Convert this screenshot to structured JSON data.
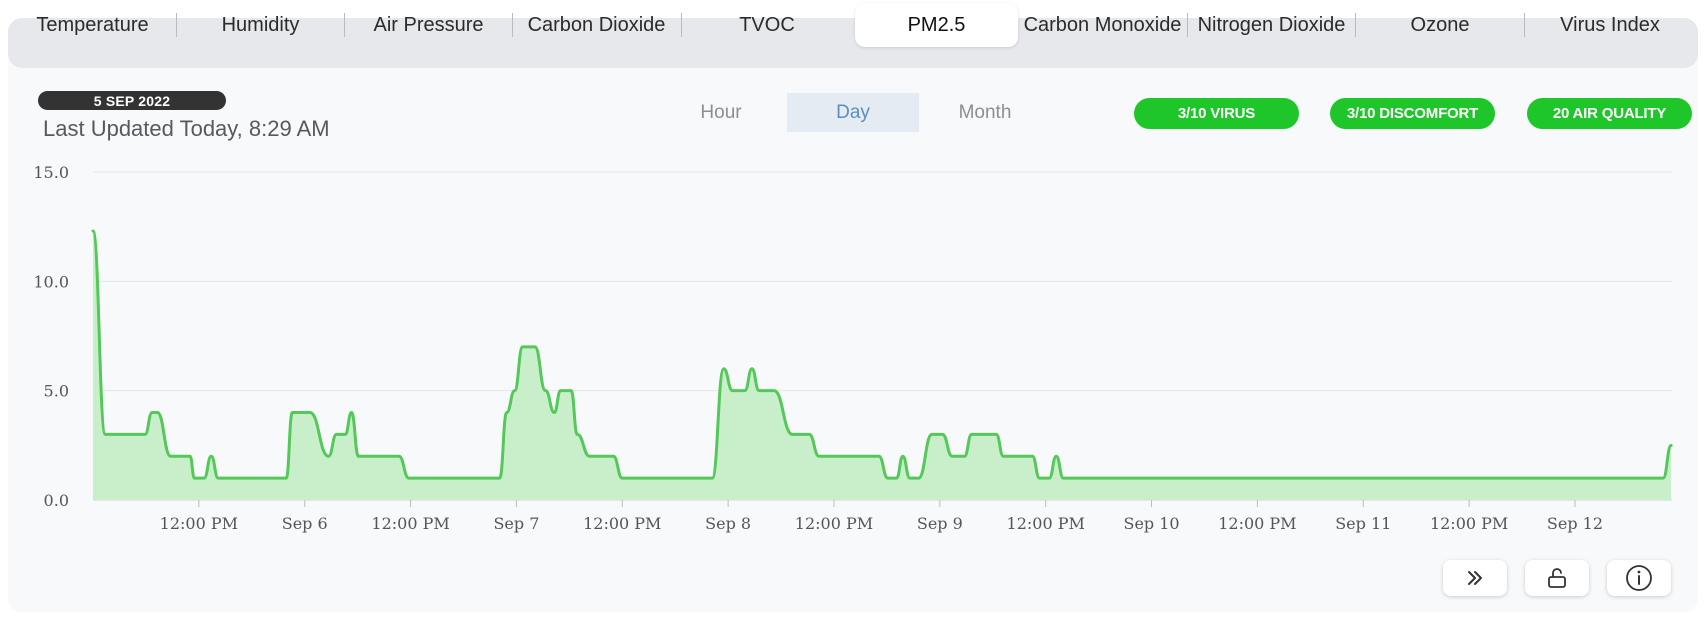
{
  "tabs": [
    {
      "label": "Temperature"
    },
    {
      "label": "Humidity"
    },
    {
      "label": "Air Pressure"
    },
    {
      "label": "Carbon Dioxide"
    },
    {
      "label": "TVOC"
    },
    {
      "label": "PM2.5",
      "active": true
    },
    {
      "label": "Carbon Monoxide"
    },
    {
      "label": "Nitrogen Dioxide"
    },
    {
      "label": "Ozone"
    },
    {
      "label": "Virus Index"
    }
  ],
  "header": {
    "date_badge": "5 SEP 2022",
    "last_updated": "Last Updated Today, 8:29 AM"
  },
  "period": {
    "hour": "Hour",
    "day": "Day",
    "month": "Month",
    "selected": "Day"
  },
  "pills": {
    "virus": "3/10  VIRUS",
    "discomfort": "3/10  DISCOMFORT",
    "air_quality": "20  AIR QUALITY"
  },
  "colors": {
    "line": "#55c85a",
    "fill": "#c8efca",
    "pill": "#1ec62a"
  },
  "icons": [
    "double-chevron-right-icon",
    "unlock-icon",
    "info-icon"
  ],
  "chart_data": {
    "type": "area",
    "title": "PM2.5",
    "xlabel": "",
    "ylabel": "",
    "ylim": [
      0,
      15
    ],
    "yticks": [
      "0.0",
      "5.0",
      "10.0",
      "15.0"
    ],
    "grid": true,
    "x_range_hours": [
      0,
      179
    ],
    "x_ticks": [
      {
        "h": 12,
        "label": "12:00 PM"
      },
      {
        "h": 24,
        "label": "Sep 6"
      },
      {
        "h": 36,
        "label": "12:00 PM"
      },
      {
        "h": 48,
        "label": "Sep 7"
      },
      {
        "h": 60,
        "label": "12:00 PM"
      },
      {
        "h": 72,
        "label": "Sep 8"
      },
      {
        "h": 84,
        "label": "12:00 PM"
      },
      {
        "h": 96,
        "label": "Sep 9"
      },
      {
        "h": 108,
        "label": "12:00 PM"
      },
      {
        "h": 120,
        "label": "Sep 10"
      },
      {
        "h": 132,
        "label": "12:00 PM"
      },
      {
        "h": 144,
        "label": "Sep 11"
      },
      {
        "h": 156,
        "label": "12:00 PM"
      },
      {
        "h": 168,
        "label": "Sep 12"
      }
    ],
    "series": [
      {
        "name": "PM2.5",
        "points": [
          [
            0,
            12.3
          ],
          [
            1.4,
            3
          ],
          [
            5.9,
            3
          ],
          [
            6.7,
            4
          ],
          [
            7.3,
            4
          ],
          [
            8.8,
            2
          ],
          [
            11,
            2
          ],
          [
            11.5,
            1
          ],
          [
            12.6,
            1
          ],
          [
            13.4,
            2
          ],
          [
            14.2,
            1
          ],
          [
            21.9,
            1
          ],
          [
            22.6,
            4
          ],
          [
            24.6,
            4
          ],
          [
            26.7,
            2
          ],
          [
            27.6,
            3
          ],
          [
            28.6,
            3
          ],
          [
            29.3,
            4
          ],
          [
            30.1,
            2
          ],
          [
            34.7,
            2
          ],
          [
            35.8,
            1
          ],
          [
            46.1,
            1
          ],
          [
            46.9,
            4
          ],
          [
            47.8,
            5
          ],
          [
            48.7,
            7
          ],
          [
            50.1,
            7
          ],
          [
            51.3,
            5
          ],
          [
            52.3,
            4
          ],
          [
            53,
            5
          ],
          [
            54.2,
            5
          ],
          [
            54.9,
            3
          ],
          [
            56.3,
            2
          ],
          [
            59,
            2
          ],
          [
            60,
            1
          ],
          [
            70.2,
            1
          ],
          [
            71.5,
            6
          ],
          [
            72.5,
            5
          ],
          [
            73.9,
            5
          ],
          [
            74.7,
            6
          ],
          [
            75.5,
            5
          ],
          [
            77.2,
            5
          ],
          [
            79.3,
            3
          ],
          [
            81.2,
            3
          ],
          [
            82.3,
            2
          ],
          [
            89.1,
            2
          ],
          [
            90.1,
            1
          ],
          [
            91.1,
            1
          ],
          [
            91.8,
            2
          ],
          [
            92.6,
            1
          ],
          [
            93.6,
            1
          ],
          [
            95.1,
            3
          ],
          [
            96.3,
            3
          ],
          [
            97.4,
            2
          ],
          [
            98.8,
            2
          ],
          [
            99.6,
            3
          ],
          [
            102.4,
            3
          ],
          [
            103.2,
            2
          ],
          [
            106.5,
            2
          ],
          [
            107.3,
            1
          ],
          [
            108.4,
            1
          ],
          [
            109.2,
            2
          ],
          [
            110,
            1
          ],
          [
            178,
            1
          ],
          [
            178.9,
            2.5
          ]
        ]
      }
    ]
  }
}
